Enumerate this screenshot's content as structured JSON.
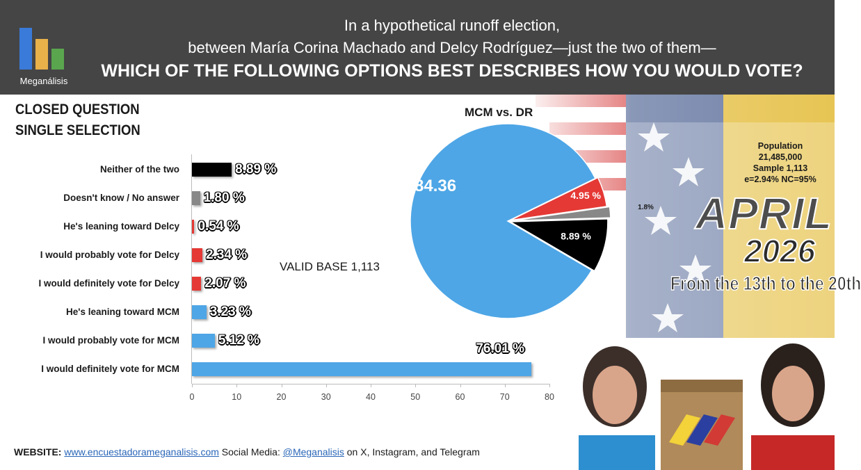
{
  "header": {
    "logo_text": "Meganálisis",
    "line1": "In a hypothetical runoff election,",
    "line2": "between María Corina Machado and Delcy Rodríguez—just the two of them—",
    "line3": "WHICH OF THE FOLLOWING OPTIONS BEST DESCRIBES HOW YOU WOULD VOTE?"
  },
  "question_type": {
    "line1": "CLOSED QUESTION",
    "line2": "SINGLE SELECTION"
  },
  "valid_base": "VALID BASE  1,113",
  "population_box": {
    "line1": "Population",
    "line2": "21,485,000",
    "line3": "Sample 1,113",
    "line4": "e=2.94%  NC=95%"
  },
  "date": {
    "month": "APRIL",
    "year": "2026",
    "range": "From the 13th to the 20th"
  },
  "footer": {
    "website_label": "WEBSITE:",
    "website": "www.encuestadorameganalisis.com",
    "social_label": "Social Media:",
    "handle": "@Meganalisis",
    "platforms": "on X, Instagram, and Telegram"
  },
  "colors": {
    "header_bg": "#454545",
    "mcm": "#4ea6e6",
    "delcy": "#e53935",
    "neither": "#000000",
    "dk": "#888888"
  },
  "chart_data": [
    {
      "type": "bar",
      "orientation": "horizontal",
      "categories": [
        "Neither of the two",
        "Doesn't know / No answer",
        "He's leaning toward Delcy",
        "I would probably vote for Delcy",
        "I would definitely vote for Delcy",
        "He's leaning toward MCM",
        "I would probably vote for MCM",
        "I would definitely vote for MCM"
      ],
      "values": [
        8.89,
        1.8,
        0.54,
        2.34,
        2.07,
        3.23,
        5.12,
        76.01
      ],
      "value_labels": [
        "8.89 %",
        "1.80 %",
        "0.54 %",
        "2.34 %",
        "2.07 %",
        "3.23 %",
        "5.12 %",
        "76.01 %"
      ],
      "colors": [
        "#000000",
        "#888888",
        "#e53935",
        "#e53935",
        "#e53935",
        "#4ea6e6",
        "#4ea6e6",
        "#4ea6e6"
      ],
      "xlim": [
        0,
        80
      ],
      "xticks": [
        "0",
        "10",
        "20",
        "30",
        "40",
        "50",
        "60",
        "70",
        "80"
      ]
    },
    {
      "type": "pie",
      "title": "MCM vs. DR",
      "values": [
        84.36,
        4.95,
        1.8,
        8.89
      ],
      "labels": [
        "84.36",
        "4.95 %",
        "1.8%",
        "8.89 %"
      ],
      "colors": [
        "#4ea6e6",
        "#e53935",
        "#888888",
        "#000000"
      ]
    }
  ]
}
